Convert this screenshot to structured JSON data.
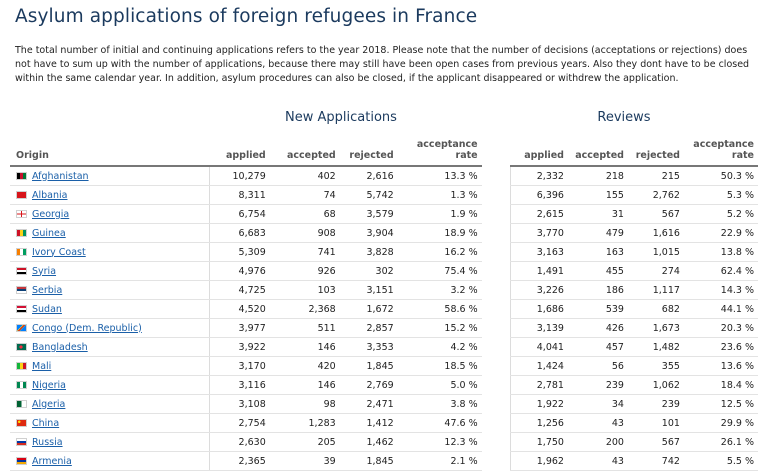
{
  "title": "Asylum applications of foreign refugees in France",
  "intro": "The total number of initial and continuing applications refers to the year 2018. Please note that the number of decisions (acceptations or rejections) does not have to sum up with the number of applications, because there may still have been open cases from previous years. Also they dont have to be closed within the same calendar year. In addition, asylum procedures can also be closed, if the applicant disappeared or withdrew the application.",
  "groups": {
    "new_applications": "New Applications",
    "reviews": "Reviews"
  },
  "headers": {
    "origin": "Origin",
    "applied": "applied",
    "accepted": "accepted",
    "rejected": "rejected",
    "acceptance_rate": "acceptance rate"
  },
  "rows": [
    {
      "country": "Afghanistan",
      "flag": "linear-gradient(to right,#000 33%,#c8102e 33% 66%,#007a36 66%)",
      "new": {
        "applied": "10,279",
        "accepted": "402",
        "rejected": "2,616",
        "rate": "13.3 %"
      },
      "rev": {
        "applied": "2,332",
        "accepted": "218",
        "rejected": "215",
        "rate": "50.3 %"
      }
    },
    {
      "country": "Albania",
      "flag": "#d7141a",
      "new": {
        "applied": "8,311",
        "accepted": "74",
        "rejected": "5,742",
        "rate": "1.3 %"
      },
      "rev": {
        "applied": "6,396",
        "accepted": "155",
        "rejected": "2,762",
        "rate": "5.3 %"
      }
    },
    {
      "country": "Georgia",
      "flag": "linear-gradient(to right,transparent 42%,#d7141a 42% 58%,transparent 58%),linear-gradient(to bottom,#fff 38%,#d7141a 38% 62%,#fff 62%)",
      "new": {
        "applied": "6,754",
        "accepted": "68",
        "rejected": "3,579",
        "rate": "1.9 %"
      },
      "rev": {
        "applied": "2,615",
        "accepted": "31",
        "rejected": "567",
        "rate": "5.2 %"
      }
    },
    {
      "country": "Guinea",
      "flag": "linear-gradient(to right,#ce1126 33%,#fcd116 33% 66%,#009460 66%)",
      "new": {
        "applied": "6,683",
        "accepted": "908",
        "rejected": "3,904",
        "rate": "18.9 %"
      },
      "rev": {
        "applied": "3,770",
        "accepted": "479",
        "rejected": "1,616",
        "rate": "22.9 %"
      }
    },
    {
      "country": "Ivory Coast",
      "flag": "linear-gradient(to right,#f77f00 33%,#fff 33% 66%,#009e60 66%)",
      "new": {
        "applied": "5,309",
        "accepted": "741",
        "rejected": "3,828",
        "rate": "16.2 %"
      },
      "rev": {
        "applied": "3,163",
        "accepted": "163",
        "rejected": "1,015",
        "rate": "13.8 %"
      }
    },
    {
      "country": "Syria",
      "flag": "linear-gradient(to bottom,#ce1126 33%,#fff 33% 66%,#000 66%)",
      "new": {
        "applied": "4,976",
        "accepted": "926",
        "rejected": "302",
        "rate": "75.4 %"
      },
      "rev": {
        "applied": "1,491",
        "accepted": "455",
        "rejected": "274",
        "rate": "62.4 %"
      }
    },
    {
      "country": "Serbia",
      "flag": "linear-gradient(to bottom,#c6363c 33%,#0c4076 33% 66%,#fff 66%)",
      "new": {
        "applied": "4,725",
        "accepted": "103",
        "rejected": "3,151",
        "rate": "3.2 %"
      },
      "rev": {
        "applied": "3,226",
        "accepted": "186",
        "rejected": "1,117",
        "rate": "14.3 %"
      }
    },
    {
      "country": "Sudan",
      "flag": "linear-gradient(to bottom,#d21034 33%,#fff 33% 66%,#000 66%)",
      "new": {
        "applied": "4,520",
        "accepted": "2,368",
        "rejected": "1,672",
        "rate": "58.6 %"
      },
      "rev": {
        "applied": "1,686",
        "accepted": "539",
        "rejected": "682",
        "rate": "44.1 %"
      }
    },
    {
      "country": "Congo (Dem. Republic)",
      "flag": "linear-gradient(135deg,#007fff 40%,#f7d618 40% 44%,#ce1021 44% 56%,#f7d618 56% 60%,#007fff 60%)",
      "new": {
        "applied": "3,977",
        "accepted": "511",
        "rejected": "2,857",
        "rate": "15.2 %"
      },
      "rev": {
        "applied": "3,139",
        "accepted": "426",
        "rejected": "1,673",
        "rate": "20.3 %"
      }
    },
    {
      "country": "Bangladesh",
      "flag": "radial-gradient(circle at 45% 50%,#f42a41 28%,#006a4e 30%)",
      "new": {
        "applied": "3,922",
        "accepted": "146",
        "rejected": "3,353",
        "rate": "4.2 %"
      },
      "rev": {
        "applied": "4,041",
        "accepted": "457",
        "rejected": "1,482",
        "rate": "23.6 %"
      }
    },
    {
      "country": "Mali",
      "flag": "linear-gradient(to right,#14b53a 33%,#fcd116 33% 66%,#ce1126 66%)",
      "new": {
        "applied": "3,170",
        "accepted": "420",
        "rejected": "1,845",
        "rate": "18.5 %"
      },
      "rev": {
        "applied": "1,424",
        "accepted": "56",
        "rejected": "355",
        "rate": "13.6 %"
      }
    },
    {
      "country": "Nigeria",
      "flag": "linear-gradient(to right,#008751 33%,#fff 33% 66%,#008751 66%)",
      "new": {
        "applied": "3,116",
        "accepted": "146",
        "rejected": "2,769",
        "rate": "5.0 %"
      },
      "rev": {
        "applied": "2,781",
        "accepted": "239",
        "rejected": "1,062",
        "rate": "18.4 %"
      }
    },
    {
      "country": "Algeria",
      "flag": "linear-gradient(to right,#006233 50%,#fff 50%)",
      "new": {
        "applied": "3,108",
        "accepted": "98",
        "rejected": "2,471",
        "rate": "3.8 %"
      },
      "rev": {
        "applied": "1,922",
        "accepted": "34",
        "rejected": "239",
        "rate": "12.5 %"
      }
    },
    {
      "country": "China",
      "flag": "radial-gradient(circle at 25% 30%,#ffde00 14%,#de2910 16%)",
      "new": {
        "applied": "2,754",
        "accepted": "1,283",
        "rejected": "1,412",
        "rate": "47.6 %"
      },
      "rev": {
        "applied": "1,256",
        "accepted": "43",
        "rejected": "101",
        "rate": "29.9 %"
      }
    },
    {
      "country": "Russia",
      "flag": "linear-gradient(to bottom,#fff 33%,#0039a6 33% 66%,#d52b1e 66%)",
      "new": {
        "applied": "2,630",
        "accepted": "205",
        "rejected": "1,462",
        "rate": "12.3 %"
      },
      "rev": {
        "applied": "1,750",
        "accepted": "200",
        "rejected": "567",
        "rate": "26.1 %"
      }
    },
    {
      "country": "Armenia",
      "flag": "linear-gradient(to bottom,#d90012 33%,#0033a0 33% 66%,#f2a800 66%)",
      "new": {
        "applied": "2,365",
        "accepted": "39",
        "rejected": "1,845",
        "rate": "2.1 %"
      },
      "rev": {
        "applied": "1,962",
        "accepted": "43",
        "rejected": "742",
        "rate": "5.5 %"
      }
    }
  ]
}
